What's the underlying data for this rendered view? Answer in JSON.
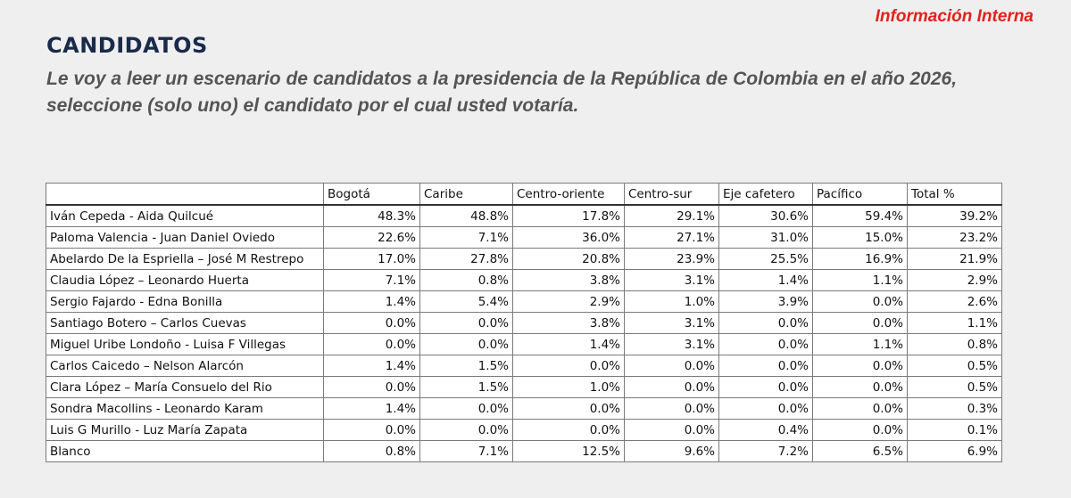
{
  "header": {
    "tag": "Información Interna",
    "title": "CANDIDATOS",
    "question": "Le voy a leer un escenario de candidatos a la presidencia de la República de Colombia en el año 2026, seleccione (solo uno) el candidato por el cual usted votaría."
  },
  "table": {
    "columns": [
      "",
      "Bogotá",
      "Caribe",
      "Centro-oriente",
      "Centro-sur",
      "Eje cafetero",
      "Pacífico",
      "Total %"
    ],
    "rows": [
      [
        "Iván Cepeda - Aida Quilcué",
        "48.3%",
        "48.8%",
        "17.8%",
        "29.1%",
        "30.6%",
        "59.4%",
        "39.2%"
      ],
      [
        "Paloma Valencia - Juan Daniel Oviedo",
        "22.6%",
        "7.1%",
        "36.0%",
        "27.1%",
        "31.0%",
        "15.0%",
        "23.2%"
      ],
      [
        "Abelardo De la Espriella – José M Restrepo",
        "17.0%",
        "27.8%",
        "20.8%",
        "23.9%",
        "25.5%",
        "16.9%",
        "21.9%"
      ],
      [
        "Claudia López – Leonardo Huerta",
        "7.1%",
        "0.8%",
        "3.8%",
        "3.1%",
        "1.4%",
        "1.1%",
        "2.9%"
      ],
      [
        "Sergio Fajardo - Edna Bonilla",
        "1.4%",
        "5.4%",
        "2.9%",
        "1.0%",
        "3.9%",
        "0.0%",
        "2.6%"
      ],
      [
        "Santiago Botero – Carlos Cuevas",
        "0.0%",
        "0.0%",
        "3.8%",
        "3.1%",
        "0.0%",
        "0.0%",
        "1.1%"
      ],
      [
        "Miguel Uribe Londoño - Luisa F Villegas",
        "0.0%",
        "0.0%",
        "1.4%",
        "3.1%",
        "0.0%",
        "1.1%",
        "0.8%"
      ],
      [
        "Carlos Caicedo – Nelson Alarcón",
        "1.4%",
        "1.5%",
        "0.0%",
        "0.0%",
        "0.0%",
        "0.0%",
        "0.5%"
      ],
      [
        "Clara López – María Consuelo del Rio",
        "0.0%",
        "1.5%",
        "1.0%",
        "0.0%",
        "0.0%",
        "0.0%",
        "0.5%"
      ],
      [
        "Sondra Macollins - Leonardo Karam",
        "1.4%",
        "0.0%",
        "0.0%",
        "0.0%",
        "0.0%",
        "0.0%",
        "0.3%"
      ],
      [
        "Luis G Murillo - Luz María Zapata",
        "0.0%",
        "0.0%",
        "0.0%",
        "0.0%",
        "0.4%",
        "0.0%",
        "0.1%"
      ],
      [
        "Blanco",
        "0.8%",
        "7.1%",
        "12.5%",
        "9.6%",
        "7.2%",
        "6.5%",
        "6.9%"
      ]
    ]
  }
}
